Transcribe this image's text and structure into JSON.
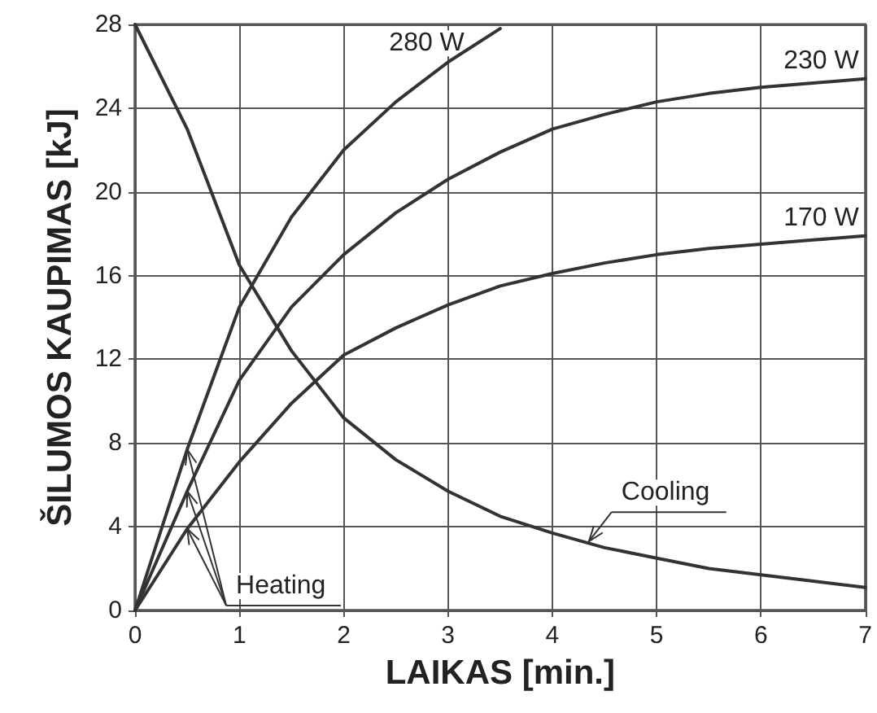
{
  "chart_data": {
    "type": "line",
    "xlabel": "LAIKAS [min.]",
    "ylabel": "ŠILUMOS KAUPIMAS [kJ]",
    "x": [
      0,
      0.5,
      1,
      1.5,
      2,
      2.5,
      3,
      3.5,
      4,
      4.5,
      5,
      5.5,
      6,
      6.5,
      7
    ],
    "series": [
      {
        "name": "280 W",
        "color": "#333333",
        "x": [
          0,
          0.5,
          1,
          1.5,
          2,
          2.5,
          3,
          3.5
        ],
        "values": [
          0,
          7.7,
          14.5,
          18.8,
          22,
          24.3,
          26.2,
          27.8
        ]
      },
      {
        "name": "230 W",
        "color": "#333333",
        "values": [
          0,
          5.7,
          11,
          14.5,
          17,
          19,
          20.6,
          21.9,
          23,
          23.7,
          24.3,
          24.7,
          25,
          25.2,
          25.4
        ]
      },
      {
        "name": "170 W",
        "color": "#333333",
        "values": [
          0,
          3.9,
          7.1,
          9.9,
          12.2,
          13.5,
          14.6,
          15.5,
          16.1,
          16.6,
          17,
          17.3,
          17.5,
          17.7,
          17.9
        ]
      },
      {
        "color": "#333333",
        "values": [
          28,
          23,
          16.5,
          12.4,
          9.2,
          7.2,
          5.7,
          4.5,
          3.7,
          3,
          2.5,
          2,
          1.7,
          1.4,
          1.1
        ]
      }
    ],
    "xlim": [
      0,
      7
    ],
    "xticks": [
      0,
      1,
      2,
      3,
      4,
      5,
      6,
      7
    ],
    "ylim": [
      0,
      28
    ],
    "yticks": [
      0,
      4,
      8,
      12,
      16,
      20,
      24,
      28
    ],
    "annotations": [
      {
        "text": "Heating",
        "x": 0.5,
        "y": 7.7
      },
      {
        "text": "Cooling",
        "x": 4.35,
        "y": 3.3
      }
    ],
    "grid": true,
    "legend": false,
    "marker": "none",
    "line_style": "solid"
  }
}
